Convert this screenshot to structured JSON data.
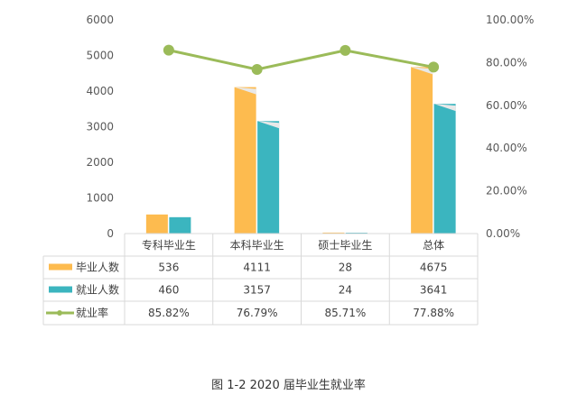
{
  "chart_data": {
    "type": "bar",
    "categories": [
      "专科毕业生",
      "本科毕业生",
      "硕士毕业生",
      "总体"
    ],
    "series": [
      {
        "name": "毕业人数",
        "type": "bar",
        "axis": "left",
        "color": "#FDBB4F",
        "values": [
          536,
          4111,
          28,
          4675
        ]
      },
      {
        "name": "就业人数",
        "type": "bar",
        "axis": "left",
        "color": "#3BB5BF",
        "values": [
          460,
          3157,
          24,
          3641
        ]
      },
      {
        "name": "就业率",
        "type": "line",
        "axis": "right",
        "color": "#9BBB59",
        "values": [
          85.82,
          76.79,
          85.71,
          77.88
        ],
        "labels": [
          "85.82%",
          "76.79%",
          "85.71%",
          "77.88%"
        ]
      }
    ],
    "y_left": {
      "range": [
        0,
        6000
      ],
      "ticks": [
        "0",
        "1000",
        "2000",
        "3000",
        "4000",
        "5000",
        "6000"
      ]
    },
    "y_right": {
      "range": [
        0,
        100
      ],
      "ticks": [
        "0.00%",
        "20.00%",
        "40.00%",
        "60.00%",
        "80.00%",
        "100.00%"
      ]
    },
    "grid": false,
    "legend": "data-table"
  },
  "caption": "图 1-2  2020 届毕业生就业率"
}
